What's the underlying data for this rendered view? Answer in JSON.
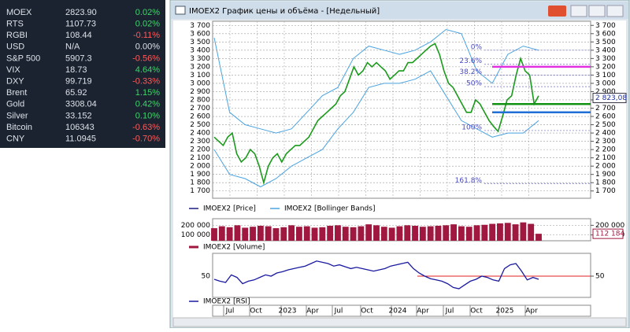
{
  "tickers": [
    {
      "name": "MOEX",
      "value": "2823.90",
      "change": "0.02%"
    },
    {
      "name": "RTS",
      "value": "1107.73",
      "change": "0.02%"
    },
    {
      "name": "RGBI",
      "value": "108.44",
      "change": "-0.11%"
    },
    {
      "name": "USD",
      "value": "N/A",
      "change": "0.00%"
    },
    {
      "name": "S&P 500",
      "value": "5907.3",
      "change": "-0.56%"
    },
    {
      "name": "VIX",
      "value": "18.73",
      "change": "4.64%"
    },
    {
      "name": "DXY",
      "value": "99.719",
      "change": "-0.33%"
    },
    {
      "name": "Brent",
      "value": "65.92",
      "change": "1.15%"
    },
    {
      "name": "Gold",
      "value": "3308.04",
      "change": "0.42%"
    },
    {
      "name": "Silver",
      "value": "33.152",
      "change": "0.10%"
    },
    {
      "name": "Bitcoin",
      "value": "106343",
      "change": "-0.63%"
    },
    {
      "name": "CNY",
      "value": "11.0945",
      "change": "-0.70%"
    }
  ],
  "window": {
    "title": "IMOEX2 График цены и объёма - [Недельный]"
  },
  "price_pane": {
    "ylim": [
      1650,
      3750
    ],
    "yticks": [
      {
        "value": 1700,
        "label": "1 700"
      },
      {
        "value": 1800,
        "label": "1 800"
      },
      {
        "value": 1900,
        "label": "1 900"
      },
      {
        "value": 2000,
        "label": "2 000"
      },
      {
        "value": 2100,
        "label": "2 100"
      },
      {
        "value": 2200,
        "label": "2 200"
      },
      {
        "value": 2300,
        "label": "2 300"
      },
      {
        "value": 2400,
        "label": "2 400"
      },
      {
        "value": 2500,
        "label": "2 500"
      },
      {
        "value": 2600,
        "label": "2 600"
      },
      {
        "value": 2700,
        "label": "2 700"
      },
      {
        "value": 2800,
        "label": "2 800"
      },
      {
        "value": 2900,
        "label": "2 900"
      },
      {
        "value": 3000,
        "label": "3 000"
      },
      {
        "value": 3100,
        "label": "3 100"
      },
      {
        "value": 3200,
        "label": "3 200"
      },
      {
        "value": 3300,
        "label": "3 300"
      },
      {
        "value": 3400,
        "label": "3 400"
      },
      {
        "value": 3500,
        "label": "3 500"
      },
      {
        "value": 3600,
        "label": "3 600"
      },
      {
        "value": 3700,
        "label": "3 700"
      }
    ],
    "close": [
      2350,
      2300,
      2250,
      2350,
      2400,
      2150,
      2050,
      2100,
      2200,
      2150,
      2000,
      1800,
      2000,
      2100,
      2150,
      2050,
      2150,
      2200,
      2250,
      2250,
      2300,
      2350,
      2450,
      2550,
      2600,
      2650,
      2700,
      2750,
      2850,
      2900,
      3050,
      3200,
      3100,
      3150,
      3250,
      3200,
      3250,
      3200,
      3150,
      3050,
      3100,
      3150,
      3150,
      3250,
      3250,
      3300,
      3350,
      3400,
      3450,
      3480,
      3350,
      3150,
      3000,
      2950,
      2850,
      2750,
      2650,
      2650,
      2800,
      2750,
      2650,
      2550,
      2480,
      2420,
      2600,
      2800,
      2850,
      3100,
      3300,
      3150,
      3100,
      2750,
      2850
    ],
    "bollinger_upper": [
      3550,
      2650,
      2500,
      2450,
      2400,
      2450,
      2650,
      2850,
      2950,
      3300,
      3450,
      3400,
      3350,
      3400,
      3500,
      3650,
      3600,
      3150,
      3000,
      3350,
      3450,
      3400
    ],
    "bollinger_lower": [
      2200,
      1900,
      1850,
      1750,
      1850,
      2000,
      2100,
      2200,
      2450,
      2650,
      2950,
      3000,
      3000,
      3050,
      3150,
      2850,
      2550,
      2450,
      2350,
      2400,
      2400,
      2550
    ],
    "levels": [
      {
        "value": 3200,
        "color": "#e030e0"
      },
      {
        "value": 2750,
        "color": "#129212"
      },
      {
        "value": 2650,
        "color": "#1f6fd6"
      }
    ],
    "fibonacci": [
      {
        "label": "0%",
        "value": 3400
      },
      {
        "label": "23.6%",
        "value": 3230
      },
      {
        "label": "38.2%",
        "value": 3100
      },
      {
        "label": "50%",
        "value": 2960
      },
      {
        "label": "100%",
        "value": 2430
      },
      {
        "label": "161.8%",
        "value": 1790
      }
    ],
    "last_price": {
      "value": 2823.08,
      "label": "2 823,08"
    },
    "legend": [
      "IMOEX2 [Price]",
      "IMOEX2 [Bollinger Bands]"
    ]
  },
  "volume_pane": {
    "ylim": [
      40000,
      260000
    ],
    "yticks": [
      {
        "value": 100000,
        "label": "100 000"
      },
      {
        "value": 200000,
        "label": "200 000"
      }
    ],
    "values": [
      170000,
      190000,
      180000,
      200000,
      175000,
      185000,
      195000,
      190000,
      170000,
      180000,
      200000,
      185000,
      190000,
      175000,
      180000,
      195000,
      200000,
      185000,
      180000,
      190000,
      210000,
      200000,
      185000,
      175000,
      190000,
      200000,
      195000,
      185000,
      190000,
      195000,
      200000,
      210000,
      190000,
      185000,
      200000,
      205000,
      215000,
      220000,
      225000,
      210000,
      230000,
      215000,
      112184
    ],
    "last_value": {
      "value": 112184,
      "label": "112 184"
    },
    "legend": "IMOEX2 [Volume]"
  },
  "rsi_pane": {
    "ylim": [
      20,
      85
    ],
    "yticks": [
      50
    ],
    "level": 50,
    "values": [
      45,
      42,
      40,
      52,
      48,
      38,
      42,
      44,
      48,
      52,
      50,
      55,
      57,
      60,
      62,
      64,
      66,
      70,
      74,
      72,
      70,
      66,
      68,
      65,
      62,
      64,
      62,
      60,
      58,
      60,
      62,
      66,
      68,
      70,
      72,
      62,
      55,
      50,
      46,
      44,
      42,
      38,
      32,
      30,
      36,
      42,
      45,
      50,
      48,
      44,
      42,
      62,
      68,
      70,
      58,
      44,
      48,
      45
    ],
    "legend": "IMOEX2 [RSI]"
  },
  "x_axis": {
    "labels": [
      {
        "label": "Jul",
        "x": 292
      },
      {
        "label": "Oct",
        "x": 325
      },
      {
        "label": "2023",
        "x": 365
      },
      {
        "label": "Apr",
        "x": 397
      },
      {
        "label": "Jul",
        "x": 430
      },
      {
        "label": "Oct",
        "x": 466
      },
      {
        "label": "2024",
        "x": 505
      },
      {
        "label": "Apr",
        "x": 537
      },
      {
        "label": "Jul",
        "x": 571
      },
      {
        "label": "Oct",
        "x": 605
      },
      {
        "label": "2025",
        "x": 641
      },
      {
        "label": "Apr",
        "x": 675
      }
    ]
  }
}
